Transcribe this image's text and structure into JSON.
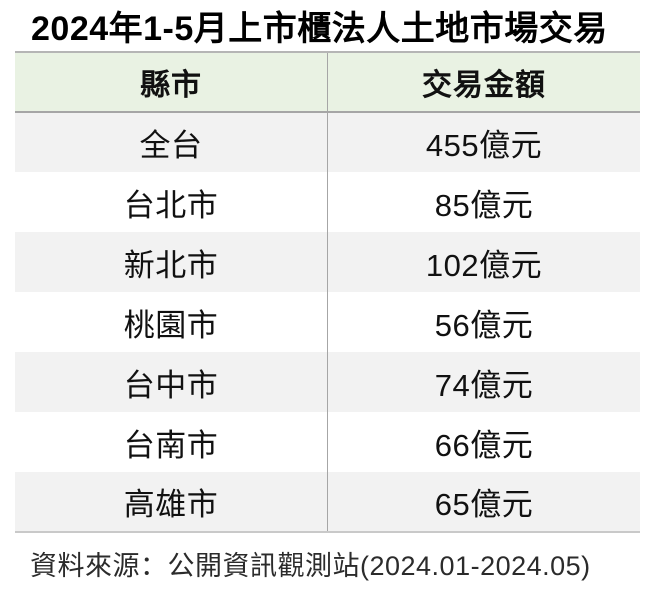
{
  "title": "2024年1-5月上市櫃法人土地市場交易",
  "table": {
    "headers": [
      "縣市",
      "交易金額"
    ],
    "rows": [
      {
        "region": "全台",
        "amount": "455億元"
      },
      {
        "region": "台北市",
        "amount": "85億元"
      },
      {
        "region": "新北市",
        "amount": "102億元"
      },
      {
        "region": "桃園市",
        "amount": "56億元"
      },
      {
        "region": "台中市",
        "amount": "74億元"
      },
      {
        "region": "台南市",
        "amount": "66億元"
      },
      {
        "region": "高雄市",
        "amount": "65億元"
      }
    ]
  },
  "source": "資料來源：公開資訊觀測站(2024.01-2024.05)",
  "colors": {
    "header_bg": "#e9f2e3",
    "alt_row_bg": "#f2f2f2",
    "border": "#a6a6a6"
  },
  "chart_data": {
    "type": "table",
    "title": "2024年1-5月上市櫃法人土地市場交易",
    "columns": [
      "縣市",
      "交易金額"
    ],
    "rows": [
      [
        "全台",
        "455億元"
      ],
      [
        "台北市",
        "85億元"
      ],
      [
        "新北市",
        "102億元"
      ],
      [
        "桃園市",
        "56億元"
      ],
      [
        "台中市",
        "74億元"
      ],
      [
        "台南市",
        "66億元"
      ],
      [
        "高雄市",
        "65億元"
      ]
    ],
    "values_billion_twd": {
      "全台": 455,
      "台北市": 85,
      "新北市": 102,
      "桃園市": 56,
      "台中市": 74,
      "台南市": 66,
      "高雄市": 65
    },
    "source": "資料來源：公開資訊觀測站(2024.01-2024.05)"
  }
}
